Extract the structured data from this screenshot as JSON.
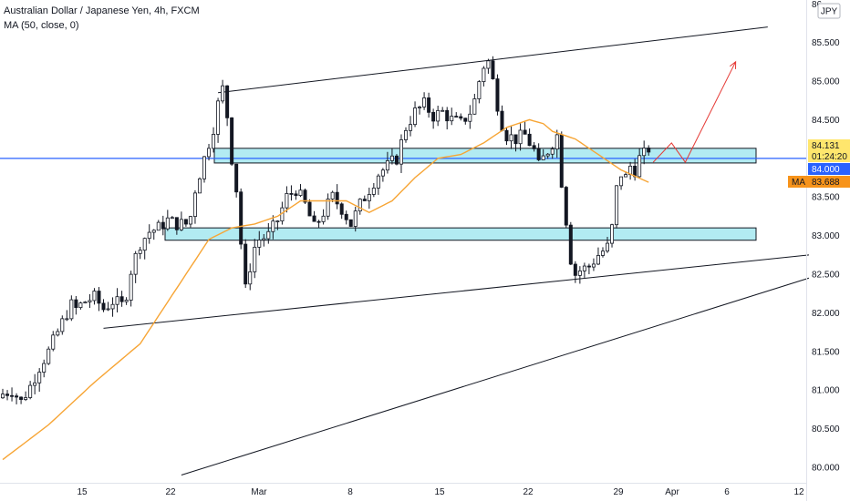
{
  "legend": {
    "symbol": "Australian Dollar / Japanese Yen, 4h, FXCM",
    "indicator": "MA (50, close, 0)"
  },
  "currency_badge": "JPY",
  "colors": {
    "up": "#26a69a",
    "down": "#131722",
    "candle_body_up": "#ffffff",
    "ma": "#f7a535",
    "hline": "#2962ff",
    "zone_fill": "#b2ebf2",
    "zone_border": "#131722",
    "trend": "#131722",
    "projection": "#e53935",
    "price_tag": "#ffe66d",
    "level_tag": "#2962ff",
    "ma_tag": "#f7931a"
  },
  "tags": {
    "price": "84.131",
    "countdown": "01:24:20",
    "level": "84.000",
    "ma_label": "MA",
    "ma_value": "83.688"
  },
  "chart_data": {
    "type": "candlestick",
    "title": "Australian Dollar / Japanese Yen, 4h, FXCM",
    "y_ticks": [
      "80.000",
      "80.500",
      "81.000",
      "81.500",
      "82.000",
      "82.500",
      "83.000",
      "83.500",
      "84.000",
      "84.500",
      "85.000",
      "85.500"
    ],
    "y_range": [
      79.8,
      86.05
    ],
    "x_ticks": [
      "15",
      "22",
      "Mar",
      "8",
      "15",
      "22",
      "29",
      "Apr",
      "6",
      "12"
    ],
    "horizontal_line": 84.0,
    "zones": [
      {
        "low": 83.94,
        "high": 84.13
      },
      {
        "low": 82.94,
        "high": 83.1
      }
    ],
    "close_path": [
      [
        0,
        80.95
      ],
      [
        2,
        81.0
      ],
      [
        4,
        80.85
      ],
      [
        6,
        81.05
      ],
      [
        8,
        81.3
      ],
      [
        10,
        81.5
      ],
      [
        12,
        81.75
      ],
      [
        14,
        82.0
      ],
      [
        15,
        82.1
      ],
      [
        16,
        82.05
      ],
      [
        18,
        82.15
      ],
      [
        20,
        82.2
      ],
      [
        22,
        82.05
      ],
      [
        24,
        82.15
      ],
      [
        26,
        82.1
      ],
      [
        27,
        82.25
      ],
      [
        28,
        82.55
      ],
      [
        30,
        82.9
      ],
      [
        32,
        83.05
      ],
      [
        34,
        83.1
      ],
      [
        36,
        83.2
      ],
      [
        38,
        83.15
      ],
      [
        40,
        83.15
      ],
      [
        41,
        83.25
      ],
      [
        42,
        83.6
      ],
      [
        44,
        84.0
      ],
      [
        46,
        84.4
      ],
      [
        47,
        84.7
      ],
      [
        48,
        84.9
      ],
      [
        49,
        84.55
      ],
      [
        50,
        84.0
      ],
      [
        51,
        83.6
      ],
      [
        52,
        82.9
      ],
      [
        53,
        82.3
      ],
      [
        54,
        82.6
      ],
      [
        55,
        82.85
      ],
      [
        56,
        82.95
      ],
      [
        58,
        83.0
      ],
      [
        60,
        83.2
      ],
      [
        62,
        83.5
      ],
      [
        64,
        83.6
      ],
      [
        66,
        83.4
      ],
      [
        68,
        83.1
      ],
      [
        70,
        83.3
      ],
      [
        72,
        83.5
      ],
      [
        74,
        83.35
      ],
      [
        76,
        83.15
      ],
      [
        78,
        83.4
      ],
      [
        80,
        83.6
      ],
      [
        82,
        83.8
      ],
      [
        84,
        83.9
      ],
      [
        86,
        84.0
      ],
      [
        88,
        84.4
      ],
      [
        90,
        84.6
      ],
      [
        92,
        84.7
      ],
      [
        94,
        84.55
      ],
      [
        96,
        84.6
      ],
      [
        98,
        84.5
      ],
      [
        100,
        84.45
      ],
      [
        102,
        84.6
      ],
      [
        103,
        84.75
      ],
      [
        104,
        85.0
      ],
      [
        105,
        85.2
      ],
      [
        106,
        85.25
      ],
      [
        107,
        85.0
      ],
      [
        108,
        84.7
      ],
      [
        109,
        84.45
      ],
      [
        110,
        84.3
      ],
      [
        112,
        84.25
      ],
      [
        114,
        84.3
      ],
      [
        116,
        84.1
      ],
      [
        117,
        83.9
      ],
      [
        118,
        84.0
      ],
      [
        120,
        84.2
      ],
      [
        121,
        84.3
      ],
      [
        122,
        83.7
      ],
      [
        123,
        83.2
      ],
      [
        124,
        82.7
      ],
      [
        125,
        82.5
      ],
      [
        126,
        82.55
      ],
      [
        128,
        82.6
      ],
      [
        130,
        82.75
      ],
      [
        132,
        82.85
      ],
      [
        133,
        83.1
      ],
      [
        134,
        83.6
      ],
      [
        135,
        83.8
      ],
      [
        136,
        83.75
      ],
      [
        137,
        83.9
      ],
      [
        138,
        83.85
      ],
      [
        139,
        84.0
      ],
      [
        140,
        84.05
      ],
      [
        141,
        84.13
      ]
    ],
    "ma_path": [
      [
        0,
        80.1
      ],
      [
        10,
        80.55
      ],
      [
        20,
        81.1
      ],
      [
        30,
        81.6
      ],
      [
        35,
        82.05
      ],
      [
        40,
        82.5
      ],
      [
        45,
        82.95
      ],
      [
        50,
        83.1
      ],
      [
        55,
        83.15
      ],
      [
        60,
        83.25
      ],
      [
        65,
        83.45
      ],
      [
        70,
        83.45
      ],
      [
        75,
        83.45
      ],
      [
        80,
        83.3
      ],
      [
        85,
        83.45
      ],
      [
        90,
        83.75
      ],
      [
        95,
        84.0
      ],
      [
        100,
        84.05
      ],
      [
        105,
        84.2
      ],
      [
        110,
        84.4
      ],
      [
        115,
        84.5
      ],
      [
        118,
        84.45
      ],
      [
        120,
        84.35
      ],
      [
        125,
        84.25
      ],
      [
        130,
        84.05
      ],
      [
        135,
        83.85
      ],
      [
        141,
        83.69
      ]
    ],
    "trendlines": [
      {
        "from": [
          47,
          84.85
        ],
        "to": [
          167,
          85.7
        ]
      },
      {
        "from": [
          22,
          81.8
        ],
        "to": [
          176,
          82.75
        ]
      },
      {
        "from": [
          39,
          79.9
        ],
        "to": [
          176,
          82.45
        ]
      }
    ],
    "projection": [
      [
        142,
        83.95
      ],
      [
        146,
        84.2
      ],
      [
        149,
        83.95
      ],
      [
        160,
        85.25
      ]
    ],
    "seed": 7,
    "num_candles": 142,
    "x_slots": 176
  }
}
